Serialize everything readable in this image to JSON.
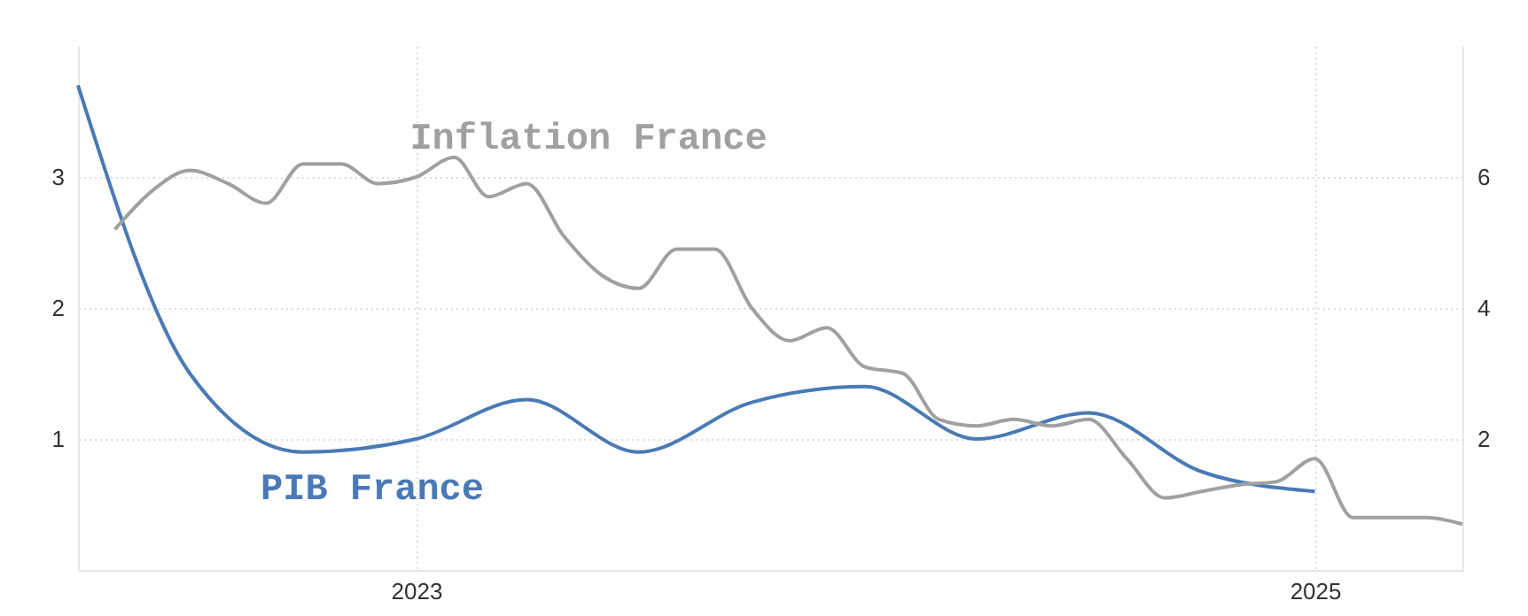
{
  "chart_data": {
    "type": "line",
    "x": [
      "2022-04",
      "2022-07",
      "2022-10",
      "2023-01",
      "2023-04",
      "2023-07",
      "2023-10",
      "2024-01",
      "2024-04",
      "2024-07",
      "2024-10",
      "2025-01"
    ],
    "series": [
      {
        "name": "PIB France",
        "color": "#4a7ab5",
        "values": [
          3.7,
          1.5,
          0.9,
          1.0,
          1.3,
          0.9,
          1.28,
          1.4,
          1.0,
          1.2,
          0.75,
          0.6
        ]
      },
      {
        "name": "Inflation France",
        "color": "#a0a0a0",
        "axis": "y2",
        "x": [
          "2022-05",
          "2022-06",
          "2022-07",
          "2022-08",
          "2022-09",
          "2022-10",
          "2022-11",
          "2022-12",
          "2023-01",
          "2023-02",
          "2023-03",
          "2023-04",
          "2023-05",
          "2023-06",
          "2023-07",
          "2023-08",
          "2023-09",
          "2023-10",
          "2023-11",
          "2023-12",
          "2024-01",
          "2024-02",
          "2024-03",
          "2024-04",
          "2024-05",
          "2024-06",
          "2024-07",
          "2024-08",
          "2024-09",
          "2024-10",
          "2024-11",
          "2024-12",
          "2025-01",
          "2025-02",
          "2025-03",
          "2025-04",
          "2025-05"
        ],
        "values": [
          5.2,
          5.8,
          6.1,
          5.9,
          5.6,
          6.2,
          6.2,
          5.9,
          6.0,
          6.3,
          5.7,
          5.9,
          5.1,
          4.5,
          4.3,
          4.9,
          4.9,
          4.0,
          3.5,
          3.7,
          3.1,
          3.0,
          2.3,
          2.2,
          2.3,
          2.2,
          2.3,
          1.7,
          1.1,
          1.2,
          1.3,
          1.35,
          1.7,
          0.8,
          0.8,
          0.8,
          0.7
        ]
      }
    ],
    "xlim": [
      "2022-04",
      "2025-05"
    ],
    "xticks": [
      "2023",
      "2025"
    ],
    "ylim": [
      0,
      4
    ],
    "yticks": [
      1,
      2,
      3
    ],
    "y2lim": [
      0,
      8
    ],
    "y2ticks": [
      2,
      4,
      6
    ],
    "grid": true,
    "line_style": "solid",
    "marker": "none"
  }
}
